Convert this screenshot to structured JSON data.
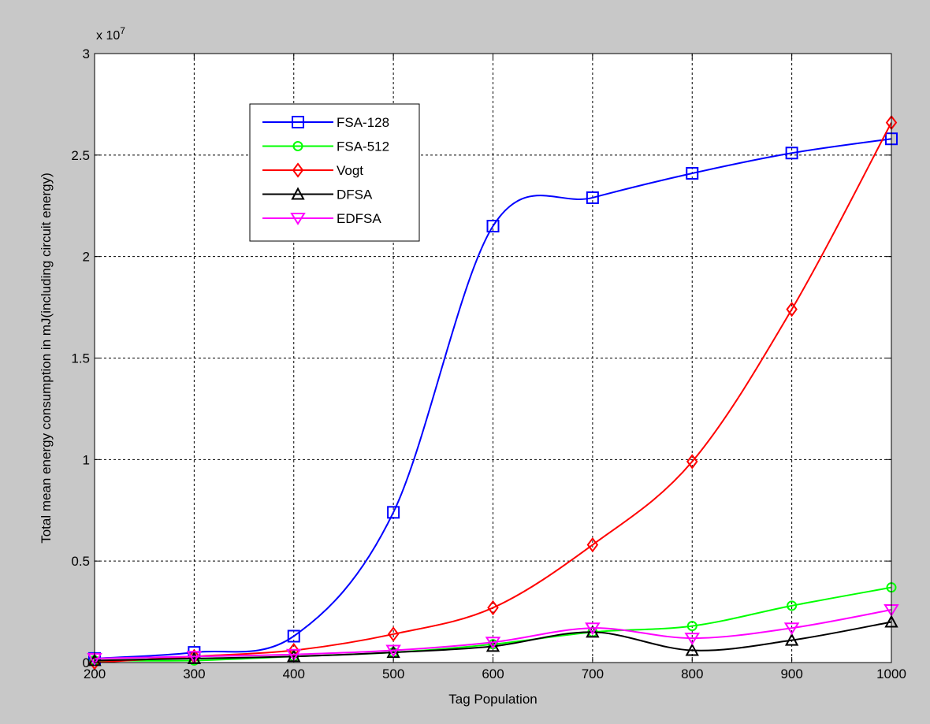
{
  "chart_data": {
    "type": "line",
    "title": "",
    "xlabel": "Tag Population",
    "ylabel": "Total mean energy consumption in mJ(including circuit energy)",
    "y_exponent_label": "x 10",
    "y_exponent_power": "7",
    "xlim": [
      200,
      1000
    ],
    "ylim": [
      0,
      3
    ],
    "y_scale_factor": 10000000,
    "x": [
      200,
      300,
      400,
      500,
      600,
      700,
      800,
      900,
      1000
    ],
    "x_ticks": [
      200,
      300,
      400,
      500,
      600,
      700,
      800,
      900,
      1000
    ],
    "x_tick_labels": [
      "200",
      "300",
      "400",
      "500",
      "600",
      "700",
      "800",
      "900",
      "1000"
    ],
    "y_ticks": [
      0,
      0.5,
      1,
      1.5,
      2,
      2.5,
      3
    ],
    "y_tick_labels": [
      "0",
      "0.5",
      "1",
      "1.5",
      "2",
      "2.5",
      "3"
    ],
    "grid": true,
    "legend_position": "top-left",
    "series": [
      {
        "name": "FSA-128",
        "color": "#0000ff",
        "marker": "square",
        "values": [
          0.02,
          0.05,
          0.13,
          0.74,
          2.15,
          2.29,
          2.41,
          2.51,
          2.58
        ]
      },
      {
        "name": "FSA-512",
        "color": "#00ff00",
        "marker": "circle",
        "values": [
          0.01,
          0.01,
          0.03,
          0.05,
          0.09,
          0.15,
          0.18,
          0.28,
          0.37
        ]
      },
      {
        "name": "Vogt",
        "color": "#ff0000",
        "marker": "diamond",
        "values": [
          0.0,
          0.03,
          0.06,
          0.14,
          0.27,
          0.58,
          0.99,
          1.74,
          2.66
        ]
      },
      {
        "name": "DFSA",
        "color": "#000000",
        "marker": "triangle-up",
        "values": [
          0.01,
          0.02,
          0.03,
          0.05,
          0.08,
          0.15,
          0.06,
          0.11,
          0.2
        ]
      },
      {
        "name": "EDFSA",
        "color": "#ff00ff",
        "marker": "triangle-down",
        "values": [
          0.02,
          0.03,
          0.04,
          0.06,
          0.1,
          0.17,
          0.12,
          0.17,
          0.26
        ]
      }
    ]
  }
}
